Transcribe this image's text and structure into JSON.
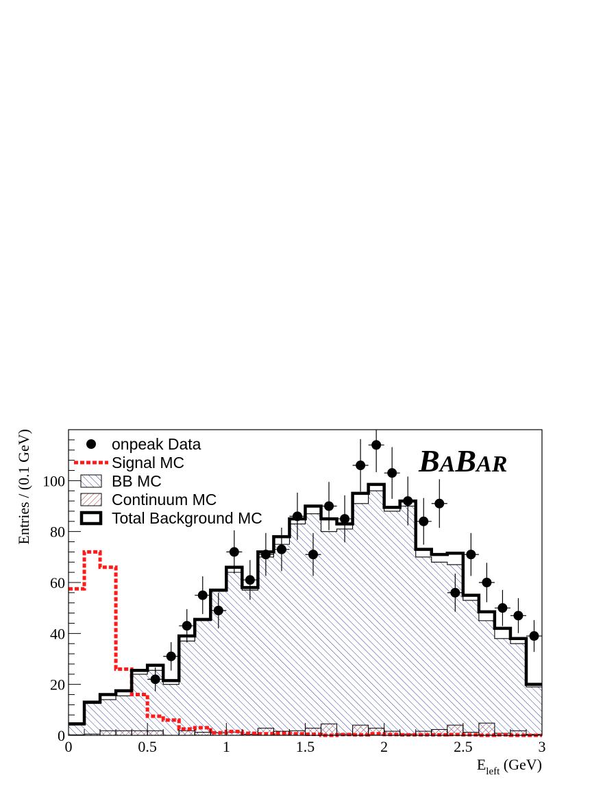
{
  "chart_data": {
    "type": "histogram",
    "xlabel": "E",
    "xlabel_sub": "left",
    "xlabel_unit": " (GeV)",
    "ylabel": "Entries / (0.1 GeV)",
    "xlim": [
      0,
      3
    ],
    "ylim": [
      0,
      120
    ],
    "x_ticks": [
      0,
      0.5,
      1,
      1.5,
      2,
      2.5,
      3
    ],
    "x_tick_labels": [
      "0",
      "0.5",
      "1",
      "1.5",
      "2",
      "2.5",
      "3"
    ],
    "y_ticks": [
      0,
      20,
      40,
      60,
      80,
      100
    ],
    "y_tick_labels": [
      "0",
      "20",
      "40",
      "60",
      "80",
      "100"
    ],
    "bin_edges": [
      0,
      0.1,
      0.2,
      0.3,
      0.4,
      0.5,
      0.6,
      0.7,
      0.8,
      0.9,
      1.0,
      1.1,
      1.2,
      1.3,
      1.4,
      1.5,
      1.6,
      1.7,
      1.8,
      1.9,
      2.0,
      2.1,
      2.2,
      2.3,
      2.4,
      2.5,
      2.6,
      2.7,
      2.8,
      2.9,
      3.0
    ],
    "logo": {
      "big1": "B",
      "small1": "A",
      "big2": "B",
      "small2": "AR"
    },
    "legend": [
      {
        "key": "data",
        "label": "onpeak Data"
      },
      {
        "key": "signal",
        "label": "Signal MC"
      },
      {
        "key": "bb",
        "label": "BB MC"
      },
      {
        "key": "continuum",
        "label": "Continuum MC"
      },
      {
        "key": "total",
        "label": "Total Background MC"
      }
    ],
    "series": {
      "total_background_mc": [
        4.5,
        13,
        16,
        17.5,
        25.5,
        27.5,
        21.5,
        39,
        45.5,
        57,
        66,
        58,
        72,
        78,
        85,
        90,
        85,
        83,
        95,
        98.5,
        89.5,
        92,
        73,
        71,
        71.5,
        55,
        48.5,
        42,
        38,
        20
      ],
      "bb_mc": [
        4,
        12.5,
        14,
        15.5,
        24,
        25.5,
        20,
        37,
        45,
        56.5,
        64,
        57,
        70,
        75,
        83,
        87,
        80,
        81,
        91,
        96,
        88,
        90,
        70,
        68,
        67,
        53,
        45,
        38,
        36,
        19
      ],
      "continuum_mc": [
        0.2,
        0.5,
        1.8,
        1.8,
        1.8,
        1.8,
        0,
        1.8,
        1.2,
        1.0,
        1.3,
        0.4,
        2.8,
        1.6,
        1.8,
        2.8,
        4.5,
        0.5,
        4.0,
        2.8,
        1.6,
        0.5,
        1.6,
        2.3,
        4.0,
        1.2,
        4.8,
        0.8,
        1.8,
        0.4
      ],
      "signal_mc": [
        57.5,
        72,
        66,
        26,
        16,
        7.5,
        6,
        2.5,
        3,
        1,
        1.5,
        0.8,
        0.6,
        0.8,
        0.6,
        0.4,
        0,
        0.3,
        0.2,
        0.6,
        0.3,
        0.2,
        0.2,
        0.2,
        0.3,
        0.2,
        0,
        0.2,
        0,
        0
      ],
      "onpeak_data": [
        null,
        null,
        null,
        null,
        null,
        22,
        31,
        43,
        55,
        49,
        72,
        61,
        71,
        73,
        86,
        71,
        90,
        85,
        106,
        114,
        103,
        92,
        84,
        91,
        56,
        71,
        60,
        50,
        47,
        39
      ]
    },
    "colors": {
      "bb_hatch": "#1a2a9a",
      "continuum_hatch": "#a01818",
      "signal": "#ff1a1a",
      "total": "#000000",
      "data": "#000000"
    }
  }
}
